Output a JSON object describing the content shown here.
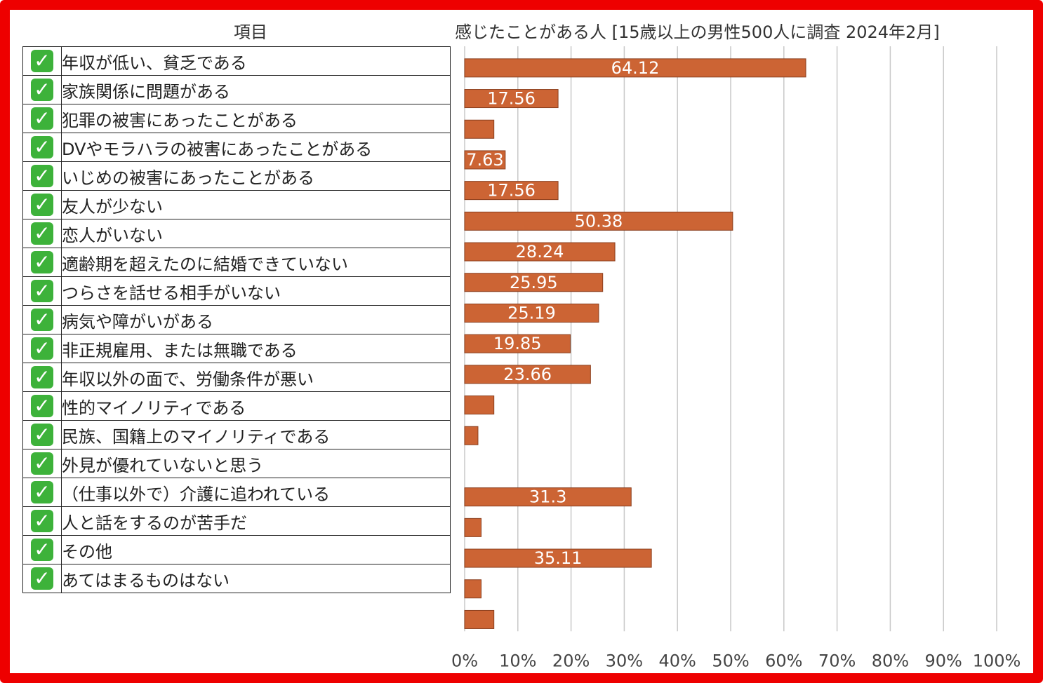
{
  "header": {
    "item_col": "項目",
    "chart_title": "感じたことがある人 [15歳以上の男性500人に調査 2024年2月]"
  },
  "chart_data": {
    "type": "bar",
    "orientation": "horizontal",
    "title": "感じたことがある人 [15歳以上の男性500人に調査 2024年2月]",
    "xlim": [
      0,
      100
    ],
    "grid": true,
    "x_ticks": [
      "0%",
      "10%",
      "20%",
      "30%",
      "40%",
      "50%",
      "60%",
      "70%",
      "80%",
      "90%",
      "100%"
    ],
    "categories": [
      "年収が低い、貧乏である",
      "家族関係に問題がある",
      "犯罪の被害にあったことがある",
      "DVやモラハラの被害にあったことがある",
      "いじめの被害にあったことがある",
      "友人が少ない",
      "恋人がいない",
      "適齢期を超えたのに結婚できていない",
      "つらさを話せる相手がいない",
      "病気や障がいがある",
      "非正規雇用、または無職である",
      "年収以外の面で、労働条件が悪い",
      "性的マイノリティである",
      "民族、国籍上のマイノリティである",
      "外見が優れていないと思う",
      "（仕事以外で）介護に追われている",
      "人と話をするのが苦手だ",
      "その他",
      "あてはまるものはない"
    ],
    "values": [
      64.12,
      17.56,
      5.5,
      7.63,
      17.56,
      50.38,
      28.24,
      25.95,
      25.19,
      19.85,
      23.66,
      5.5,
      2.5,
      0,
      31.3,
      3.1,
      35.11,
      3.1,
      5.5
    ],
    "labels": [
      "64.12",
      "17.56",
      "",
      "7.63",
      "17.56",
      "50.38",
      "28.24",
      "25.95",
      "25.19",
      "19.85",
      "23.66",
      "",
      "",
      "",
      "31.3",
      "",
      "35.11",
      "",
      ""
    ],
    "bar_color": "#cc6434"
  },
  "colors": {
    "frame": "#ee0000",
    "check": "#3db23a"
  },
  "icons": {
    "row_marker": "check-mark-icon"
  }
}
